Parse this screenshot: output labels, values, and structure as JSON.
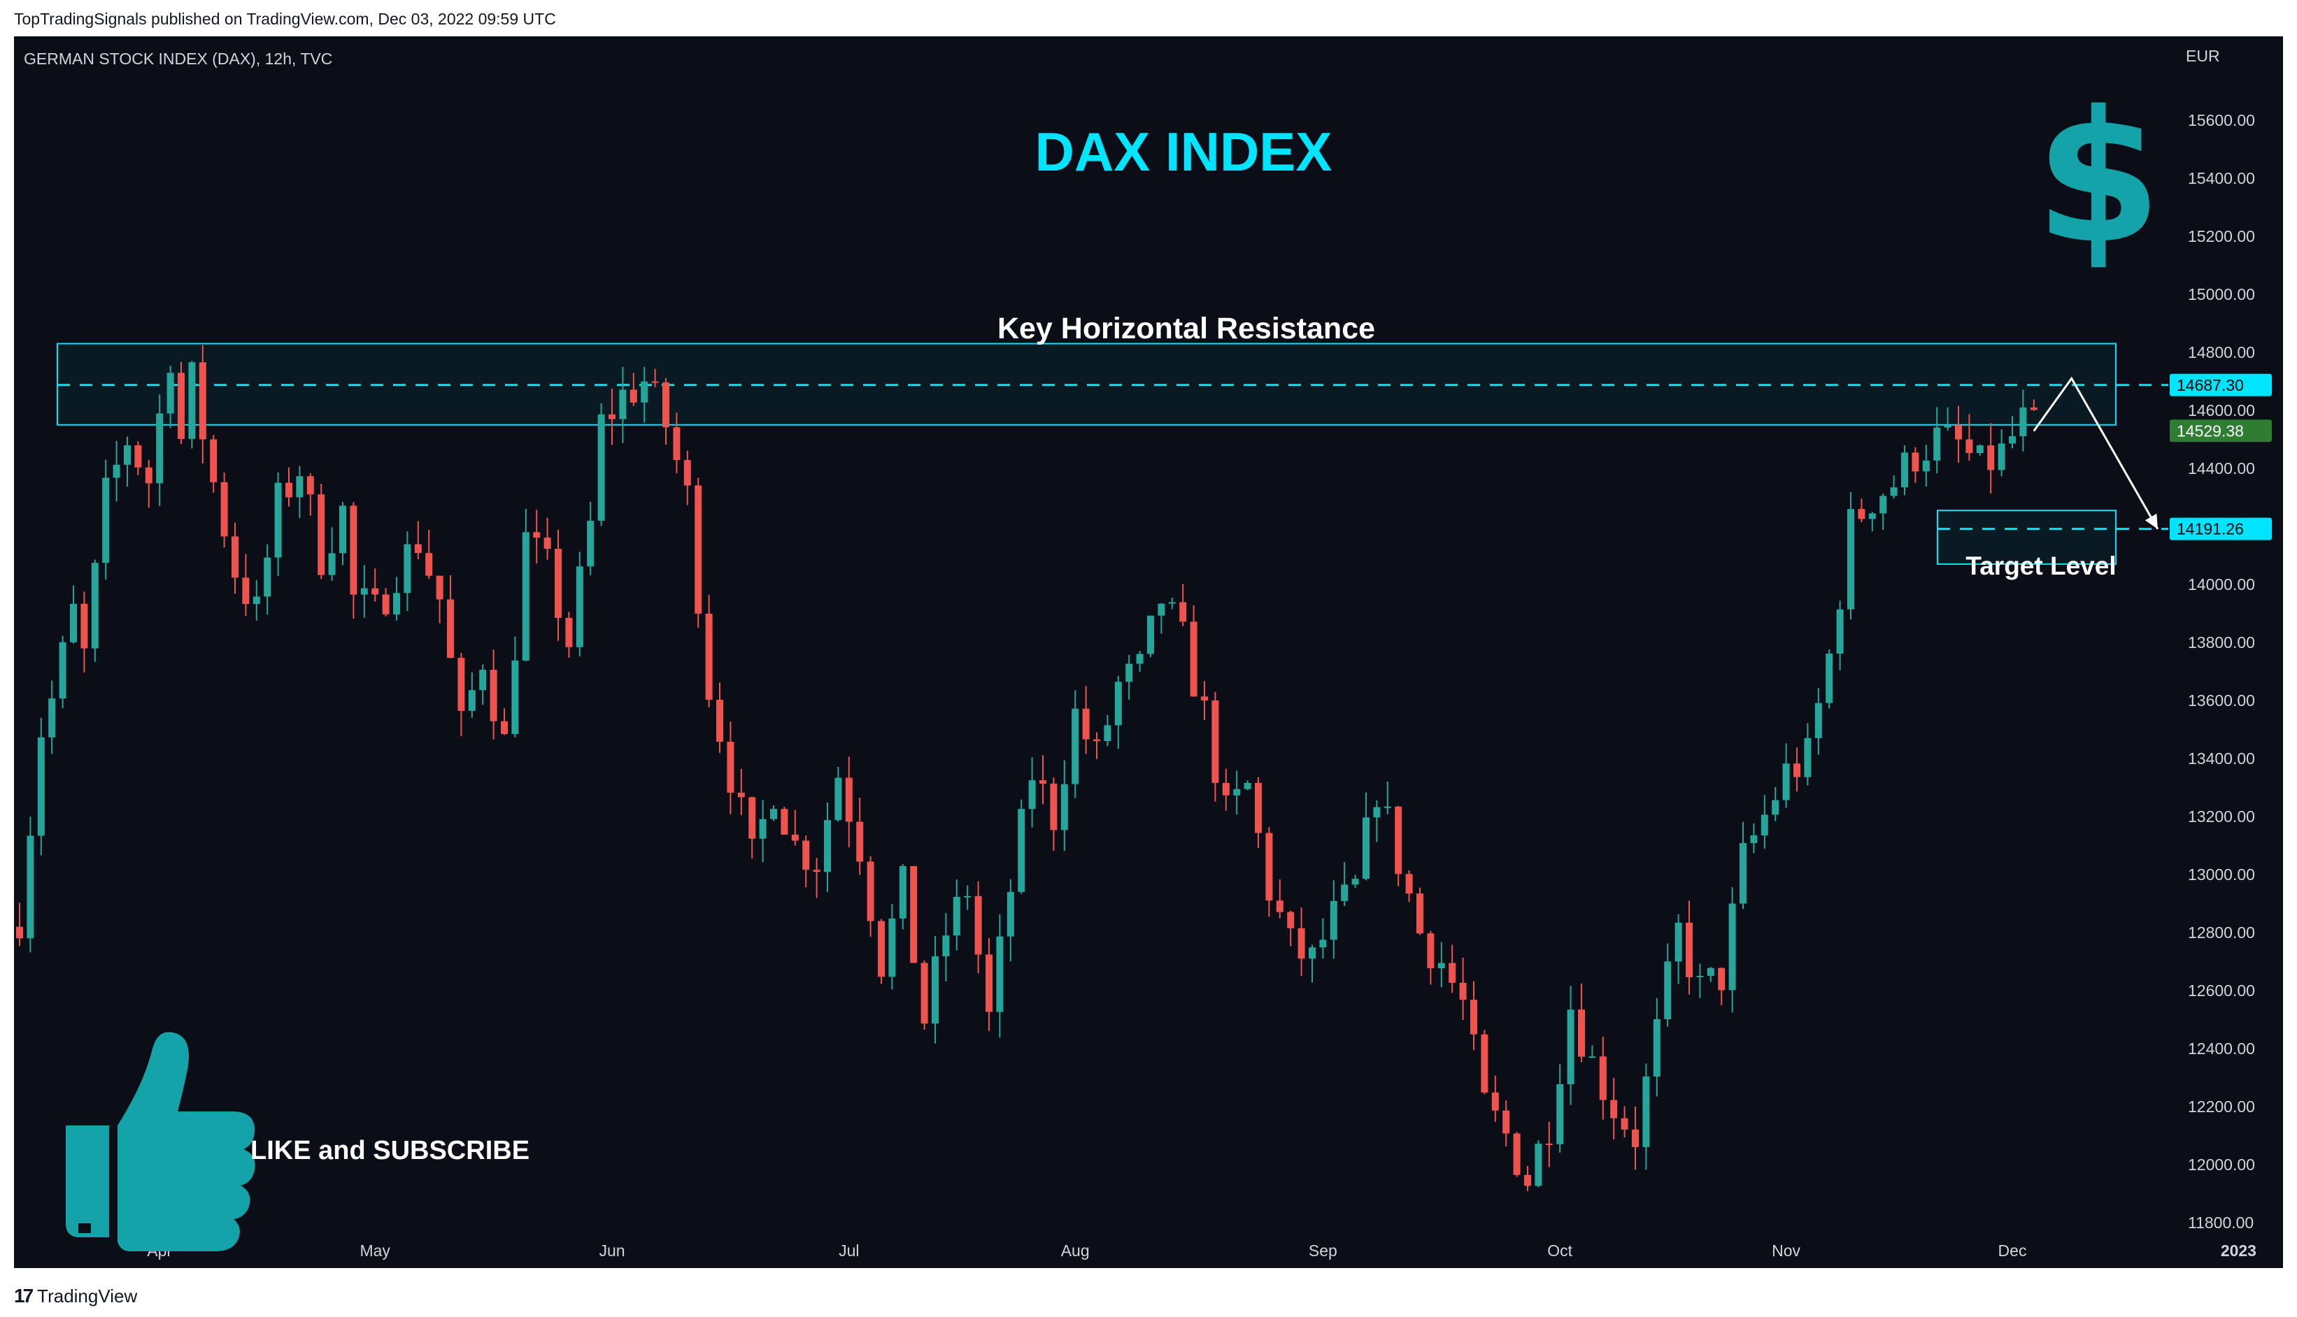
{
  "header": {
    "publish_line": "TopTradingSignals published on TradingView.com, Dec 03, 2022 09:59 UTC"
  },
  "footer": {
    "logo": "17",
    "brand": "TradingView"
  },
  "chart_data": {
    "type": "candlestick",
    "symbol": "GERMAN STOCK INDEX (DAX), 12h, TVC",
    "title": "DAX INDEX",
    "currency": "EUR",
    "ylim": [
      11700,
      15800
    ],
    "y_ticks": [
      "15600.00",
      "15400.00",
      "15200.00",
      "15000.00",
      "14800.00",
      "14600.00",
      "14400.00",
      "14000.00",
      "13800.00",
      "13600.00",
      "13400.00",
      "13200.00",
      "13000.00",
      "12800.00",
      "12600.00",
      "12400.00",
      "12200.00",
      "12000.00",
      "11800.00"
    ],
    "x_labels": [
      {
        "label": "Apr",
        "index": 13
      },
      {
        "label": "May",
        "index": 33
      },
      {
        "label": "Jun",
        "index": 55
      },
      {
        "label": "Jul",
        "index": 77
      },
      {
        "label": "Aug",
        "index": 98
      },
      {
        "label": "Sep",
        "index": 121
      },
      {
        "label": "Oct",
        "index": 143
      },
      {
        "label": "Nov",
        "index": 164
      },
      {
        "label": "Dec",
        "index": 185
      },
      {
        "label": "2023",
        "index": 206
      }
    ],
    "price_labels": {
      "resistance": "14687.30",
      "current": "14529.38",
      "target": "14191.26"
    },
    "resistance_zone": {
      "low": 14550,
      "high": 14830,
      "level": 14687.3
    },
    "target_zone": {
      "low": 14070,
      "high": 14210,
      "level": 14191.26
    },
    "annotations": {
      "resistance_label": "Key Horizontal Resistance",
      "target_label": "Target Level",
      "cta": "LIKE and SUBSCRIBE",
      "dollar": "$"
    },
    "projection": [
      {
        "index": 187,
        "value": 14529
      },
      {
        "index": 190.5,
        "value": 14710
      },
      {
        "index": 198.5,
        "value": 14191
      }
    ],
    "colors": {
      "up": "#26a69a",
      "down": "#ef5350",
      "accent": "#00e5ff",
      "icon": "#14a3a8",
      "background": "#0b0e16",
      "label_green": "#2e7d32"
    },
    "anchors": [
      [
        0,
        12860
      ],
      [
        2,
        13500
      ],
      [
        3,
        13600
      ],
      [
        5,
        13900
      ],
      [
        6,
        13750
      ],
      [
        8,
        14300
      ],
      [
        10,
        14500
      ],
      [
        12,
        14360
      ],
      [
        14,
        14800
      ],
      [
        15,
        14500
      ],
      [
        16,
        14700
      ],
      [
        18,
        14350
      ],
      [
        20,
        14050
      ],
      [
        22,
        13900
      ],
      [
        24,
        14280
      ],
      [
        26,
        14400
      ],
      [
        28,
        14100
      ],
      [
        30,
        14250
      ],
      [
        31,
        13950
      ],
      [
        33,
        13900
      ],
      [
        35,
        14050
      ],
      [
        37,
        14150
      ],
      [
        39,
        13950
      ],
      [
        41,
        13500
      ],
      [
        43,
        13750
      ],
      [
        45,
        13450
      ],
      [
        47,
        14150
      ],
      [
        49,
        14050
      ],
      [
        51,
        13800
      ],
      [
        53,
        14200
      ],
      [
        54,
        14550
      ],
      [
        56,
        14650
      ],
      [
        58,
        14700
      ],
      [
        60,
        14550
      ],
      [
        62,
        14300
      ],
      [
        64,
        13650
      ],
      [
        66,
        13350
      ],
      [
        68,
        13050
      ],
      [
        70,
        13300
      ],
      [
        72,
        13100
      ],
      [
        74,
        13050
      ],
      [
        76,
        13350
      ],
      [
        78,
        13100
      ],
      [
        80,
        12700
      ],
      [
        82,
        12950
      ],
      [
        84,
        12500
      ],
      [
        86,
        12800
      ],
      [
        88,
        12950
      ],
      [
        90,
        12500
      ],
      [
        92,
        12950
      ],
      [
        94,
        13350
      ],
      [
        96,
        13200
      ],
      [
        98,
        13550
      ],
      [
        100,
        13400
      ],
      [
        102,
        13650
      ],
      [
        104,
        13700
      ],
      [
        106,
        13950
      ],
      [
        108,
        13800
      ],
      [
        110,
        13550
      ],
      [
        112,
        13200
      ],
      [
        114,
        13300
      ],
      [
        116,
        12950
      ],
      [
        118,
        12750
      ],
      [
        120,
        12700
      ],
      [
        122,
        12850
      ],
      [
        124,
        12950
      ],
      [
        126,
        13300
      ],
      [
        128,
        13050
      ],
      [
        130,
        12800
      ],
      [
        132,
        12700
      ],
      [
        134,
        12550
      ],
      [
        136,
        12200
      ],
      [
        138,
        12100
      ],
      [
        140,
        11950
      ],
      [
        142,
        12150
      ],
      [
        144,
        12550
      ],
      [
        146,
        12350
      ],
      [
        148,
        12200
      ],
      [
        150,
        12100
      ],
      [
        152,
        12450
      ],
      [
        154,
        12800
      ],
      [
        156,
        12600
      ],
      [
        158,
        12650
      ],
      [
        160,
        13050
      ],
      [
        162,
        13200
      ],
      [
        164,
        13350
      ],
      [
        166,
        13400
      ],
      [
        168,
        13750
      ],
      [
        170,
        14200
      ],
      [
        172,
        14300
      ],
      [
        174,
        14350
      ],
      [
        176,
        14450
      ],
      [
        178,
        14500
      ],
      [
        180,
        14480
      ],
      [
        182,
        14400
      ],
      [
        184,
        14450
      ],
      [
        186,
        14560
      ],
      [
        187,
        14529
      ]
    ]
  }
}
